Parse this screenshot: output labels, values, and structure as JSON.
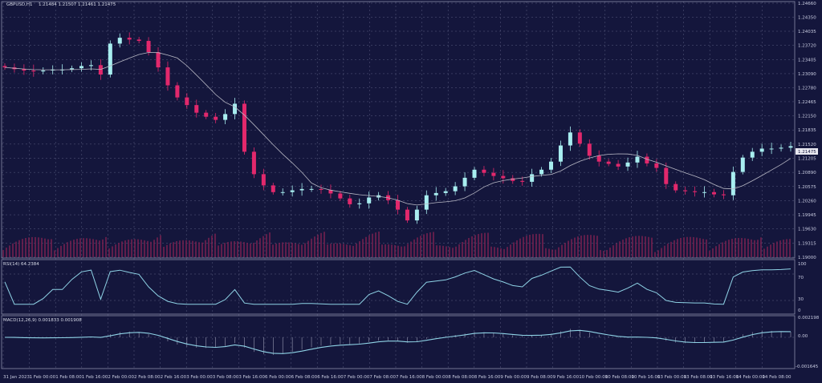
{
  "header": {
    "symbol": "GBPUSD,H1",
    "ohlc": "1.21484 1.21507 1.21461 1.21475"
  },
  "rsi": {
    "label": "RSI(14) 64.2384",
    "levels": [
      "100",
      "70",
      "30",
      "0"
    ]
  },
  "macd": {
    "label": "MACD(12,26,9) 0.001833 0.001908",
    "ticks": [
      "0.002198",
      "0.00",
      "-0.001645"
    ]
  },
  "colors": {
    "background": "#14163c",
    "bull": "#a8eef0",
    "bear": "#e2286c",
    "ma": "#b8b8c4",
    "indicator": "#8fd3e6",
    "grid": "#5a5d80"
  },
  "chart_data": {
    "type": "candlestick",
    "title": "GBPUSD,H1 1.21484 1.21507 1.21461 1.21475",
    "ylim": [
      1.19,
      1.2466
    ],
    "y_ticks": [
      "1.24660",
      "1.24350",
      "1.24035",
      "1.23720",
      "1.23405",
      "1.23090",
      "1.22780",
      "1.22465",
      "1.22150",
      "1.21835",
      "1.21520",
      "1.21205",
      "1.20890",
      "1.20575",
      "1.20260",
      "1.19945",
      "1.19630",
      "1.19315",
      "1.19000"
    ],
    "current_price": "1.21475",
    "x_ticks": [
      "31 Jan 2023",
      "1 Feb 00:00",
      "1 Feb 08:00",
      "1 Feb 16:00",
      "2 Feb 00:00",
      "2 Feb 08:00",
      "2 Feb 16:00",
      "3 Feb 00:00",
      "3 Feb 08:00",
      "3 Feb 16:00",
      "6 Feb 00:00",
      "6 Feb 08:00",
      "6 Feb 16:00",
      "7 Feb 00:00",
      "7 Feb 08:00",
      "7 Feb 16:00",
      "8 Feb 00:00",
      "8 Feb 08:00",
      "8 Feb 16:00",
      "9 Feb 00:00",
      "9 Feb 08:00",
      "9 Feb 16:00",
      "10 Feb 00:00",
      "10 Feb 08:00",
      "10 Feb 16:00",
      "13 Feb 00:00",
      "13 Feb 08:00",
      "13 Feb 16:00",
      "14 Feb 00:00",
      "14 Feb 08:00"
    ],
    "closes": [
      1.2323,
      1.2319,
      1.2316,
      1.2314,
      1.2316,
      1.2318,
      1.2318,
      1.2321,
      1.2326,
      1.2328,
      1.2307,
      1.2376,
      1.2389,
      1.2385,
      1.2382,
      1.2357,
      1.2323,
      1.2283,
      1.2256,
      1.2239,
      1.2222,
      1.2213,
      1.2206,
      1.2219,
      1.2242,
      1.2135,
      1.2085,
      1.206,
      1.2045,
      1.2045,
      1.2049,
      1.2052,
      1.2052,
      1.205,
      1.2042,
      1.2031,
      1.2018,
      1.202,
      1.2033,
      1.2038,
      1.2027,
      1.2006,
      1.1982,
      1.2006,
      1.2038,
      1.2043,
      1.2047,
      1.2058,
      1.2077,
      1.2095,
      1.2088,
      1.2081,
      1.2076,
      1.207,
      1.2068,
      1.2085,
      1.2095,
      1.2113,
      1.2149,
      1.2178,
      1.2153,
      1.2126,
      1.2113,
      1.2108,
      1.2102,
      1.2111,
      1.2124,
      1.2109,
      1.2099,
      1.2063,
      1.2049,
      1.2047,
      1.2045,
      1.2045,
      1.204,
      1.2038,
      1.209,
      1.2122,
      1.2135,
      1.2142,
      1.2142,
      1.2144,
      1.21475
    ]
  }
}
